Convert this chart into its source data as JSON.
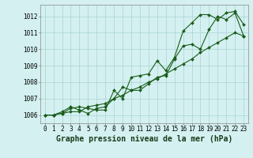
{
  "title": "Graphe pression niveau de la mer (hPa)",
  "bg_color": "#d4f0f0",
  "line_color": "#1a5c1a",
  "grid_color": "#aad4d4",
  "series": {
    "s1": [
      1006.0,
      1006.0,
      1006.2,
      1006.5,
      1006.3,
      1006.1,
      1006.4,
      1006.5,
      1007.0,
      1007.7,
      1007.5,
      1007.5,
      1007.9,
      1008.3,
      1008.4,
      1009.4,
      1010.2,
      1010.3,
      1010.0,
      1011.2,
      1012.0,
      1011.8,
      1012.2,
      1010.8
    ],
    "s2": [
      1006.0,
      1006.0,
      1006.1,
      1006.4,
      1006.5,
      1006.4,
      1006.3,
      1006.3,
      1007.5,
      1007.0,
      1008.3,
      1008.4,
      1008.5,
      1009.3,
      1008.7,
      1009.5,
      1011.1,
      1011.6,
      1012.1,
      1012.1,
      1011.8,
      1012.2,
      1012.3,
      1011.5
    ],
    "s3": [
      1006.0,
      1006.0,
      1006.1,
      1006.2,
      1006.2,
      1006.5,
      1006.6,
      1006.7,
      1007.0,
      1007.2,
      1007.5,
      1007.7,
      1008.0,
      1008.2,
      1008.5,
      1008.8,
      1009.1,
      1009.4,
      1009.8,
      1010.1,
      1010.4,
      1010.7,
      1011.0,
      1010.8
    ]
  },
  "xlim": [
    -0.5,
    23.5
  ],
  "ylim": [
    1005.5,
    1012.7
  ],
  "yticks": [
    1006,
    1007,
    1008,
    1009,
    1010,
    1011,
    1012
  ],
  "xticks": [
    0,
    1,
    2,
    3,
    4,
    5,
    6,
    7,
    8,
    9,
    10,
    11,
    12,
    13,
    14,
    15,
    16,
    17,
    18,
    19,
    20,
    21,
    22,
    23
  ],
  "title_fontsize": 7.0,
  "tick_fontsize": 5.5,
  "marker_size": 2.0,
  "line_width": 0.8
}
